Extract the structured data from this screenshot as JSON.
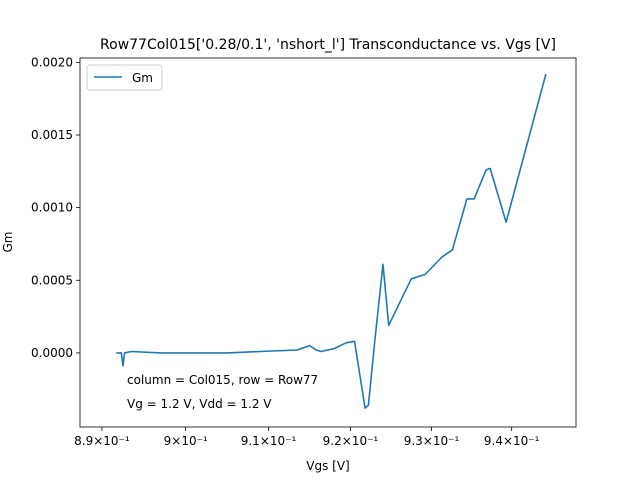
{
  "chart_data": {
    "type": "line",
    "title": "Row77Col015['0.28/0.1', 'nshort_l'] Transconductance vs. Vgs [V]",
    "xlabel": "Vgs [V]",
    "ylabel": "Gm",
    "xscale": "log",
    "xlim": [
      0.8874,
      0.9481
    ],
    "ylim": [
      -0.00051,
      0.00203
    ],
    "grid": false,
    "legend": {
      "position": "top-left",
      "entries": [
        "Gm"
      ]
    },
    "colors": {
      "line": "#1f77b4",
      "legend_border": "#cccccc"
    },
    "x_ticks": [
      {
        "value": 0.89,
        "label": "8.9×10⁻¹"
      },
      {
        "value": 0.9,
        "label": "9×10⁻¹"
      },
      {
        "value": 0.91,
        "label": "9.1×10⁻¹"
      },
      {
        "value": 0.92,
        "label": "9.2×10⁻¹"
      },
      {
        "value": 0.93,
        "label": "9.3×10⁻¹"
      },
      {
        "value": 0.94,
        "label": "9.4×10⁻¹"
      }
    ],
    "y_ticks": [
      {
        "value": 0.0,
        "label": "0.0000"
      },
      {
        "value": 0.0005,
        "label": "0.0005"
      },
      {
        "value": 0.001,
        "label": "0.0010"
      },
      {
        "value": 0.0015,
        "label": "0.0015"
      },
      {
        "value": 0.002,
        "label": "0.0020"
      }
    ],
    "annotations": [
      "column = Col015, row = Row77",
      "Vg = 1.2 V, Vdd = 1.2 V"
    ],
    "series": [
      {
        "name": "Gm",
        "x": [
          0.8917,
          0.8923,
          0.8925,
          0.8927,
          0.8935,
          0.897,
          0.905,
          0.909,
          0.9135,
          0.915,
          0.9158,
          0.9164,
          0.918,
          0.9195,
          0.9205,
          0.9218,
          0.9222,
          0.923,
          0.924,
          0.9247,
          0.9275,
          0.9292,
          0.9313,
          0.9326,
          0.9344,
          0.9353,
          0.9368,
          0.9373,
          0.9393,
          0.9443
        ],
        "y": [
          0.0,
          0.0,
          -9e-05,
          0.0,
          1e-05,
          0.0,
          0.0,
          1e-05,
          2e-05,
          5e-05,
          2e-05,
          1e-05,
          3e-05,
          7e-05,
          8e-05,
          -0.00038,
          -0.00036,
          9e-05,
          0.00061,
          0.00019,
          0.00051,
          0.00054,
          0.00066,
          0.00071,
          0.00106,
          0.00106,
          0.00126,
          0.00127,
          0.0009,
          0.00192
        ]
      }
    ]
  }
}
